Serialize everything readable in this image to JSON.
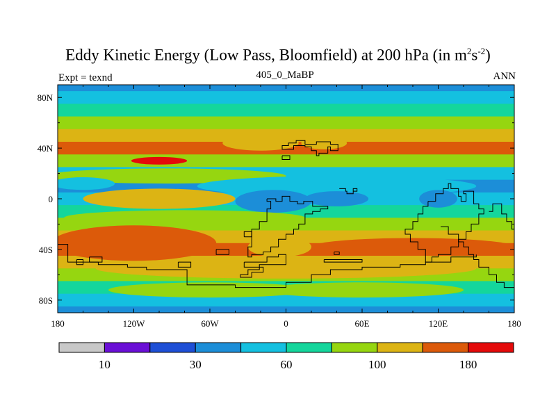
{
  "chart_data": {
    "type": "heatmap",
    "title_main": "Eddy Kinetic Energy (Low Pass, Bloomfield) at 200 hPa (in m",
    "title_unit_sup1": "2",
    "title_unit_s": "s",
    "title_unit_sup2": "-2",
    "title_close": ")",
    "subtitle_left": "Expt = texnd",
    "subtitle_center": "405_0_MaBP",
    "subtitle_right": "ANN",
    "x_ticks": [
      "180",
      "120W",
      "60W",
      "0",
      "60E",
      "120E",
      "180"
    ],
    "x_tick_values": [
      -180,
      -120,
      -60,
      0,
      60,
      120,
      180
    ],
    "y_ticks": [
      "80N",
      "40N",
      "0",
      "40S",
      "80S"
    ],
    "y_tick_values": [
      80,
      40,
      0,
      -40,
      -80
    ],
    "xlim": [
      -180,
      180
    ],
    "ylim": [
      -90,
      90
    ],
    "colorbar_labels": [
      "10",
      "30",
      "60",
      "100",
      "180"
    ],
    "colorbar_colors": [
      "#c8c8c8",
      "#6a0fd6",
      "#1e4fd6",
      "#1c8ed8",
      "#14c0e0",
      "#14d69c",
      "#96d610",
      "#dcb414",
      "#dc5a0a",
      "#e40a0a"
    ],
    "zonal_profile": {
      "latitudes": [
        90,
        80,
        70,
        60,
        50,
        40,
        30,
        20,
        10,
        0,
        -10,
        -20,
        -30,
        -40,
        -50,
        -60,
        -70,
        -80,
        -90
      ],
      "levels": [
        3,
        4,
        5,
        6,
        7,
        8,
        6,
        4,
        3,
        4,
        5,
        6,
        7,
        8,
        7,
        6,
        5,
        4,
        3
      ]
    }
  }
}
